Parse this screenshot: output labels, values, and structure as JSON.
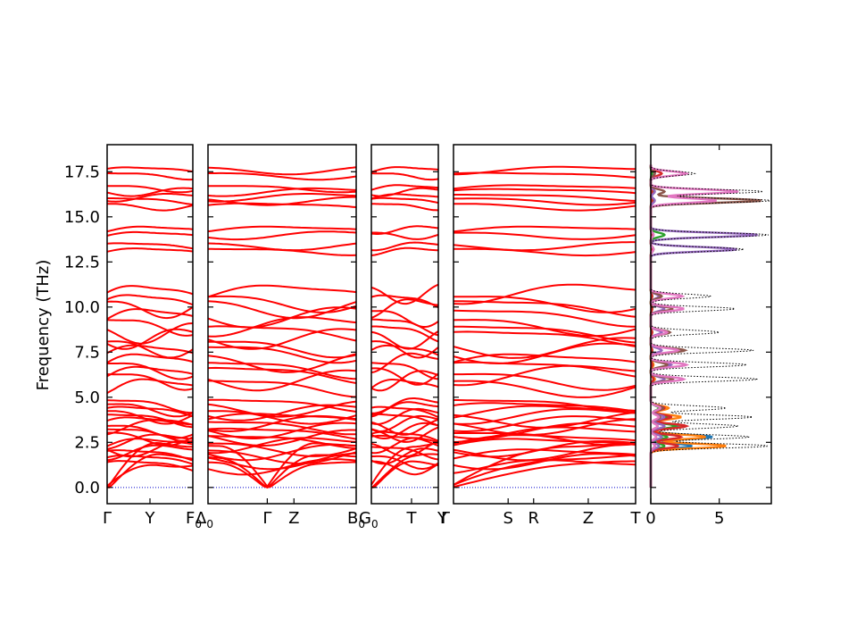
{
  "chart_data": {
    "type": "line",
    "ylabel": "Frequency (THz)",
    "ylim": [
      -0.9,
      19.0
    ],
    "yticks": [
      "0.0",
      "2.5",
      "5.0",
      "7.5",
      "10.0",
      "12.5",
      "15.0",
      "17.5"
    ],
    "ytick_values": [
      0,
      2.5,
      5,
      7.5,
      10,
      12.5,
      15,
      17.5
    ],
    "band_color": "#ff0000",
    "zero_line_color": "#0000cc",
    "bands": {
      "segments": [
        {
          "name": "panel-1",
          "path_labels": [
            {
              "label": "Γ",
              "x": 0
            },
            {
              "label": "Y",
              "x": 0.5
            },
            {
              "label": "F",
              "sub": "0",
              "x": 1
            }
          ]
        },
        {
          "name": "panel-2",
          "path_labels": [
            {
              "label": "Δ",
              "sub": "0",
              "x": 0
            },
            {
              "label": "Γ",
              "x": 0.4
            },
            {
              "label": "Z",
              "x": 0.58
            },
            {
              "label": "B",
              "sub": "0",
              "x": 1
            }
          ]
        },
        {
          "name": "panel-3",
          "path_labels": [
            {
              "label": "G",
              "sub": "0",
              "x": 0
            },
            {
              "label": "T",
              "x": 0.6
            },
            {
              "label": "Y",
              "x": 1
            }
          ]
        },
        {
          "name": "panel-4",
          "path_labels": [
            {
              "label": "Γ",
              "x": 0
            },
            {
              "label": "S",
              "x": 0.3
            },
            {
              "label": "R",
              "x": 0.44
            },
            {
              "label": "Z",
              "x": 0.74
            },
            {
              "label": "T",
              "x": 1
            }
          ]
        }
      ],
      "band_frequencies_at_gamma": [
        0,
        0,
        0,
        1.2,
        1.5,
        1.8,
        2.0,
        2.2,
        2.4,
        2.6,
        2.8,
        3.0,
        3.2,
        3.4,
        3.6,
        3.8,
        4.0,
        4.2,
        4.4,
        4.6,
        5.6,
        6.0,
        6.3,
        6.6,
        7.0,
        7.5,
        7.8,
        8.3,
        8.6,
        9.0,
        9.5,
        10.0,
        10.3,
        10.8,
        13.1,
        13.4,
        14.0,
        14.3,
        15.6,
        15.9,
        16.1,
        16.4,
        16.6,
        17.3,
        17.6
      ]
    },
    "dos": {
      "xlim": [
        0,
        8.8
      ],
      "xticks": [
        "0",
        "5"
      ],
      "xtick_values": [
        0,
        5
      ],
      "total_color": "#000000",
      "total_style": "dotted",
      "projected_colors": [
        "#1f77b4",
        "#ff7f0e",
        "#2ca02c",
        "#d62728",
        "#9467bd",
        "#8c564b",
        "#e377c2"
      ],
      "peaks": [
        {
          "f": 2.3,
          "total": 8.6,
          "proj": [
            3.0,
            5.5,
            1.0,
            2.0,
            0.6,
            0.3,
            0.3
          ]
        },
        {
          "f": 2.8,
          "total": 7.2,
          "proj": [
            4.5,
            4.0,
            1.2,
            2.2,
            0.8,
            0.4,
            0.4
          ]
        },
        {
          "f": 3.4,
          "total": 6.4,
          "proj": [
            2.0,
            2.5,
            1.8,
            2.6,
            1.0,
            0.5,
            0.5
          ]
        },
        {
          "f": 3.9,
          "total": 7.5,
          "proj": [
            1.5,
            2.2,
            1.2,
            1.5,
            1.0,
            0.7,
            0.6
          ]
        },
        {
          "f": 4.4,
          "total": 5.5,
          "proj": [
            1.0,
            1.3,
            0.6,
            1.0,
            0.8,
            0.9,
            0.7
          ]
        },
        {
          "f": 6.0,
          "total": 7.8,
          "proj": [
            0.2,
            0.3,
            0.2,
            0.2,
            1.0,
            1.6,
            2.4
          ]
        },
        {
          "f": 6.8,
          "total": 7.0,
          "proj": [
            0.1,
            0.2,
            0.1,
            0.1,
            1.5,
            1.2,
            2.6
          ]
        },
        {
          "f": 7.6,
          "total": 7.5,
          "proj": [
            0.1,
            0.1,
            0.1,
            0.1,
            0.8,
            2.5,
            2.0
          ]
        },
        {
          "f": 8.6,
          "total": 5.0,
          "proj": [
            0.1,
            0.1,
            0.1,
            0.1,
            0.8,
            1.4,
            1.2
          ]
        },
        {
          "f": 9.9,
          "total": 6.2,
          "proj": [
            0.1,
            0.1,
            0.1,
            0.1,
            1.0,
            1.6,
            2.4
          ]
        },
        {
          "f": 10.6,
          "total": 4.4,
          "proj": [
            0.1,
            0.1,
            0.1,
            0.1,
            0.6,
            0.8,
            2.3
          ]
        },
        {
          "f": 13.2,
          "total": 6.8,
          "proj": [
            0.1,
            0.1,
            0.2,
            0.1,
            6.3,
            0.2,
            0.2
          ]
        },
        {
          "f": 14.0,
          "total": 8.6,
          "proj": [
            0.1,
            0.1,
            1.0,
            0.1,
            7.8,
            0.2,
            0.2
          ]
        },
        {
          "f": 15.9,
          "total": 8.8,
          "proj": [
            0.1,
            0.1,
            0.2,
            0.1,
            0.3,
            8.1,
            4.8
          ]
        },
        {
          "f": 16.4,
          "total": 8.2,
          "proj": [
            0.1,
            0.1,
            0.2,
            0.1,
            0.3,
            1.0,
            6.4
          ]
        },
        {
          "f": 17.4,
          "total": 3.2,
          "proj": [
            0.1,
            0.1,
            0.1,
            0.8,
            0.3,
            0.3,
            2.6
          ]
        }
      ]
    }
  }
}
